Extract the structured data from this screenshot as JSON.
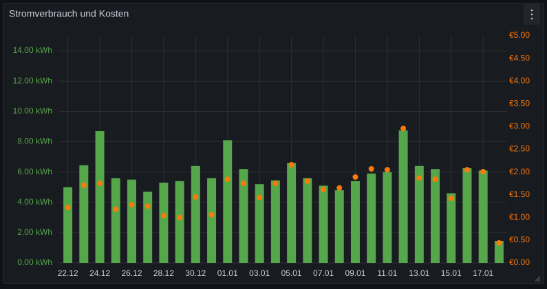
{
  "header": {
    "title": "Stromverbrauch und Kosten"
  },
  "chart_data": {
    "type": "bar_dot",
    "categories": [
      "22.12",
      null,
      "24.12",
      null,
      "26.12",
      null,
      "28.12",
      null,
      "30.12",
      null,
      "01.01",
      null,
      "03.01",
      null,
      "05.01",
      null,
      "07.01",
      null,
      "09.01",
      null,
      "11.01",
      null,
      "13.01",
      null,
      "15.01",
      null,
      "17.01",
      null
    ],
    "series": [
      {
        "color": "#56a64b",
        "values": [
          5.0,
          6.45,
          8.7,
          5.6,
          5.5,
          4.7,
          5.3,
          5.4,
          6.4,
          5.6,
          8.1,
          6.2,
          5.2,
          5.45,
          6.6,
          5.6,
          5.1,
          4.8,
          5.4,
          5.9,
          6.0,
          8.75,
          6.4,
          6.2,
          4.6,
          6.25,
          6.1,
          1.45
        ]
      },
      {
        "color": "#ff780a",
        "axis": "y2",
        "values": [
          1.22,
          1.71,
          1.75,
          1.18,
          1.28,
          1.25,
          1.04,
          1.0,
          1.45,
          1.06,
          1.84,
          1.75,
          1.44,
          1.75,
          2.16,
          1.8,
          1.62,
          1.65,
          1.89,
          2.07,
          2.05,
          2.96,
          1.87,
          1.84,
          1.42,
          2.05,
          2.01,
          0.44
        ]
      }
    ],
    "ylim": [
      0,
      15
    ],
    "yticks": [
      {
        "value": 0,
        "label": "0.00 kWh"
      },
      {
        "value": 2,
        "label": "2.00 kWh"
      },
      {
        "value": 4,
        "label": "4.00 kWh"
      },
      {
        "value": 6,
        "label": "6.00 kWh"
      },
      {
        "value": 8,
        "label": "8.00 kWh"
      },
      {
        "value": 10,
        "label": "10.00 kWh"
      },
      {
        "value": 12,
        "label": "12.00 kWh"
      },
      {
        "value": 14,
        "label": "14.00 kWh"
      }
    ],
    "y2lim": [
      0,
      5
    ],
    "y2ticks": [
      {
        "value": 0,
        "label": "€0.00"
      },
      {
        "value": 0.5,
        "label": "€0.50"
      },
      {
        "value": 1,
        "label": "€1.00"
      },
      {
        "value": 1.5,
        "label": "€1.50"
      },
      {
        "value": 2,
        "label": "€2.00"
      },
      {
        "value": 2.5,
        "label": "€2.50"
      },
      {
        "value": 3,
        "label": "€3.00"
      },
      {
        "value": 3.5,
        "label": "€3.50"
      },
      {
        "value": 4,
        "label": "€4.00"
      },
      {
        "value": 4.5,
        "label": "€4.50"
      },
      {
        "value": 5,
        "label": "€5.00"
      }
    ],
    "grid": true
  }
}
